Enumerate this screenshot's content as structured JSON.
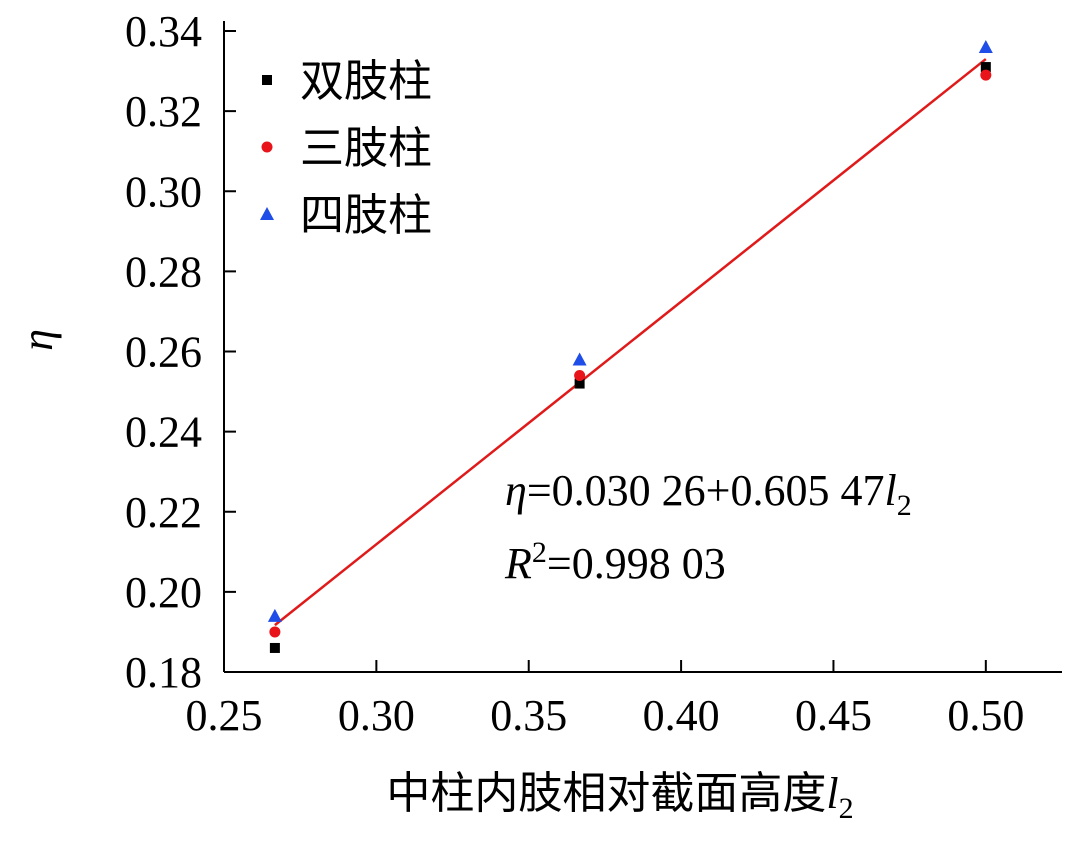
{
  "chart_data": {
    "type": "scatter",
    "series": [
      {
        "name": "双肢柱",
        "color": "#000000",
        "marker": "square",
        "x": [
          0.2667,
          0.3667,
          0.5
        ],
        "values": [
          0.186,
          0.252,
          0.331
        ]
      },
      {
        "name": "三肢柱",
        "color": "#e8141a",
        "marker": "circle",
        "x": [
          0.2667,
          0.3667,
          0.5
        ],
        "values": [
          0.19,
          0.254,
          0.329
        ]
      },
      {
        "name": "四肢柱",
        "color": "#1f4de8",
        "marker": "triangle",
        "x": [
          0.2667,
          0.3667,
          0.5
        ],
        "values": [
          0.194,
          0.258,
          0.336
        ]
      }
    ],
    "fit_line": {
      "color": "#e01a1a",
      "x": [
        0.2667,
        0.5
      ],
      "values": [
        0.1917,
        0.333
      ]
    },
    "equation": [
      "η",
      "=0.030 26+0.605 47",
      "l",
      "2"
    ],
    "r_squared": [
      "R",
      "2",
      "=0.998 03"
    ],
    "x_label": [
      "中柱内肢相对截面高度",
      "l",
      "2"
    ],
    "y_label": "η",
    "xlim": [
      0.25,
      0.525
    ],
    "ylim": [
      0.18,
      0.34
    ],
    "xticks": [
      0.25,
      {
        "value": 0.3,
        "label": "0.30"
      },
      0.35,
      {
        "value": 0.4,
        "label": "0.40"
      },
      0.45,
      {
        "value": 0.5,
        "label": "0.50"
      }
    ],
    "yticks": [
      0.18,
      {
        "value": 0.2,
        "label": "0.20"
      },
      0.22,
      0.24,
      0.26,
      0.28,
      {
        "value": 0.3,
        "label": "0.30"
      },
      0.32,
      0.34
    ]
  }
}
